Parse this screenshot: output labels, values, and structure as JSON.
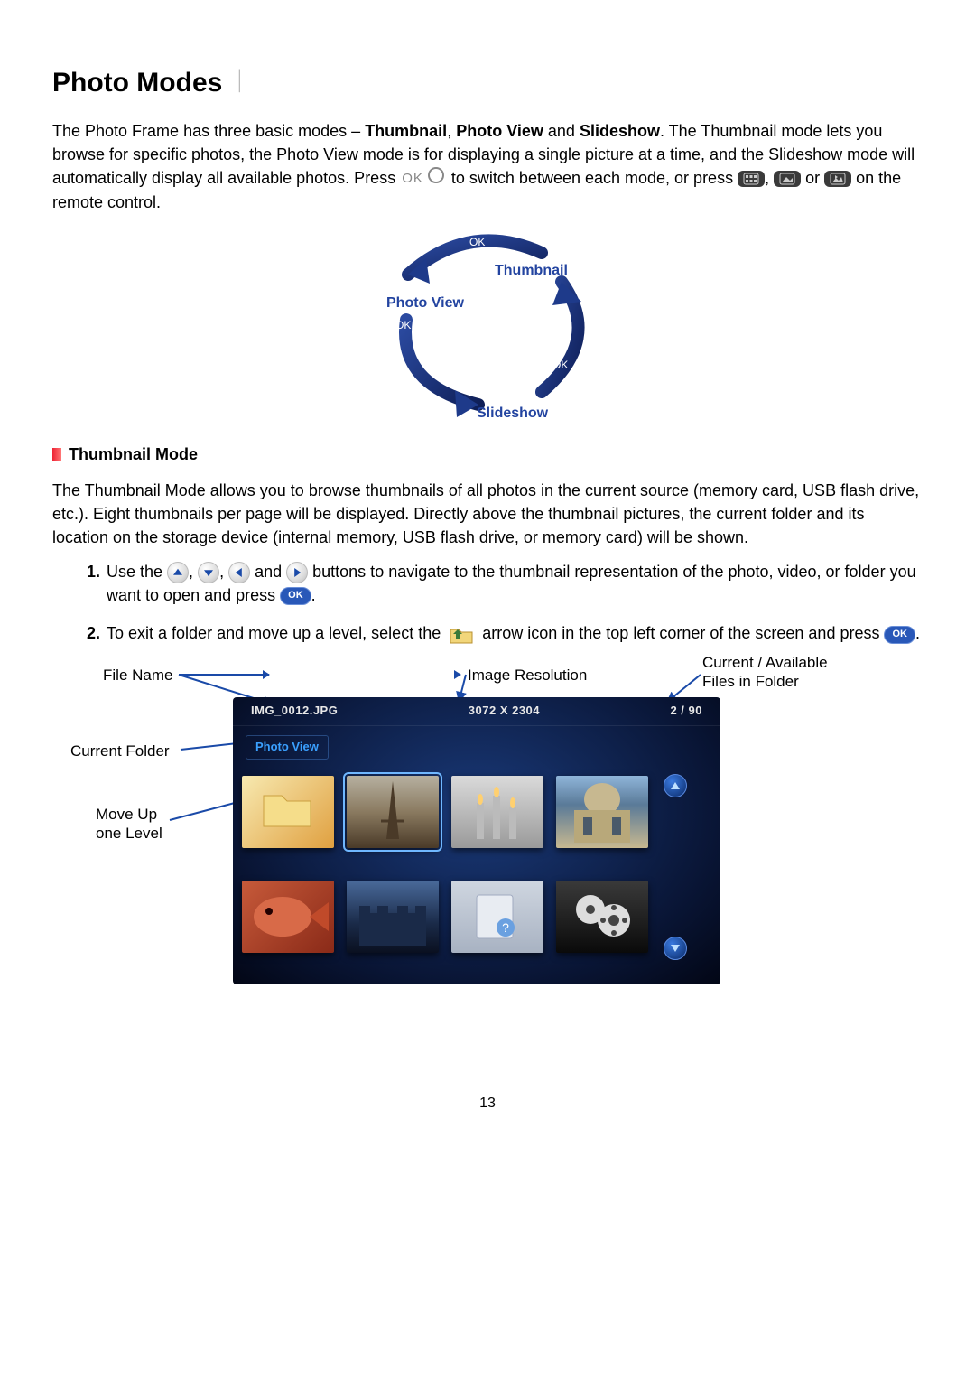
{
  "page_number": "13",
  "heading": "Photo Modes",
  "heading_sep": "︱",
  "intro": {
    "p1a": "The Photo Frame has three basic modes – ",
    "mode1": "Thumbnail",
    "sep1": ", ",
    "mode2": "Photo View",
    "sep2": " and ",
    "mode3": "Slideshow",
    "p1b": ". The Thumbnail mode lets you browse for specific photos, the Photo View mode is for displaying a single picture at a time, and the Slideshow mode will automatically display all available photos. Press ",
    "ok_text": "OK",
    "p1c": " to switch between each mode, or press ",
    "p1d": ", ",
    "p1e": " or ",
    "p1f": " on the remote control."
  },
  "cycle": {
    "thumbnail": "Thumbnail",
    "photoview": "Photo View",
    "slideshow": "Slideshow",
    "ok": "OK",
    "arrow_color": "#1e3a8a",
    "label_color": "#2344a0"
  },
  "subheading": "Thumbnail Mode",
  "thumb_para": "The Thumbnail Mode allows you to browse thumbnails of all photos in the current source (memory card, USB flash drive, etc.). Eight thumbnails per page will be displayed. Directly above the thumbnail pictures, the current folder and its location on the storage device (internal memory, USB flash drive, or memory card) will be shown.",
  "steps": {
    "n1": "1.",
    "s1a": "Use the ",
    "s1b": ", ",
    "s1c": ", ",
    "s1d": " and ",
    "s1e": " buttons to navigate to the thumbnail representation of the photo, video, or folder you want to open and press ",
    "s1f": ".",
    "n2": "2.",
    "s2a": "To exit a folder and move up a level, select the ",
    "s2b": " arrow icon in the top left corner of the screen and press ",
    "s2c": "."
  },
  "annotations": {
    "file_name": "File Name",
    "image_res": "Image Resolution",
    "cur_avail_l1": "Current / Available",
    "cur_avail_l2": "Files in Folder",
    "current_folder": "Current Folder",
    "move_up_l1": "Move Up",
    "move_up_l2": "one Level",
    "line_color": "#1a4aa8"
  },
  "screen": {
    "file_name": "IMG_0012.JPG",
    "resolution": "3072 X 2304",
    "counter": "2 / 90",
    "folder_label": "Photo View",
    "bg_gradient_inner": "#1a3a7a",
    "bg_gradient_outer": "#020615",
    "thumbs": [
      {
        "bg": "linear-gradient(135deg,#f7e9b0,#e0a040)",
        "stack": true,
        "icon": "folder"
      },
      {
        "bg": "linear-gradient(#b6b0a0 0%, #8a7a60 50%, #4a3a28 100%)",
        "stack": false,
        "icon": "eiffel",
        "selected": true
      },
      {
        "bg": "linear-gradient(#dadada,#9a9a9a)",
        "stack": false,
        "icon": "candles"
      },
      {
        "bg": "linear-gradient(#8fb5d9 0%, #5a7a98 40%, #c7b890 100%)",
        "stack": false,
        "icon": "building"
      },
      {
        "bg": "linear-gradient(135deg,#c75a3a,#8a2a18)",
        "stack": false,
        "icon": "fish"
      },
      {
        "bg": "linear-gradient(#4a6a9a 0%, #1a2a48 60%, #0a1020 100%)",
        "stack": false,
        "icon": "castle"
      },
      {
        "bg": "linear-gradient(#cfd6e0,#a8b2c2)",
        "stack": false,
        "icon": "doc"
      },
      {
        "bg": "linear-gradient(#3a3a3a,#0a0a0a)",
        "stack": false,
        "icon": "reel"
      }
    ]
  },
  "colors": {
    "icon_button_bg": "#3a3a3a",
    "ok_pill_bg": "#2958b8",
    "accent_blue": "#3aa0ff"
  }
}
